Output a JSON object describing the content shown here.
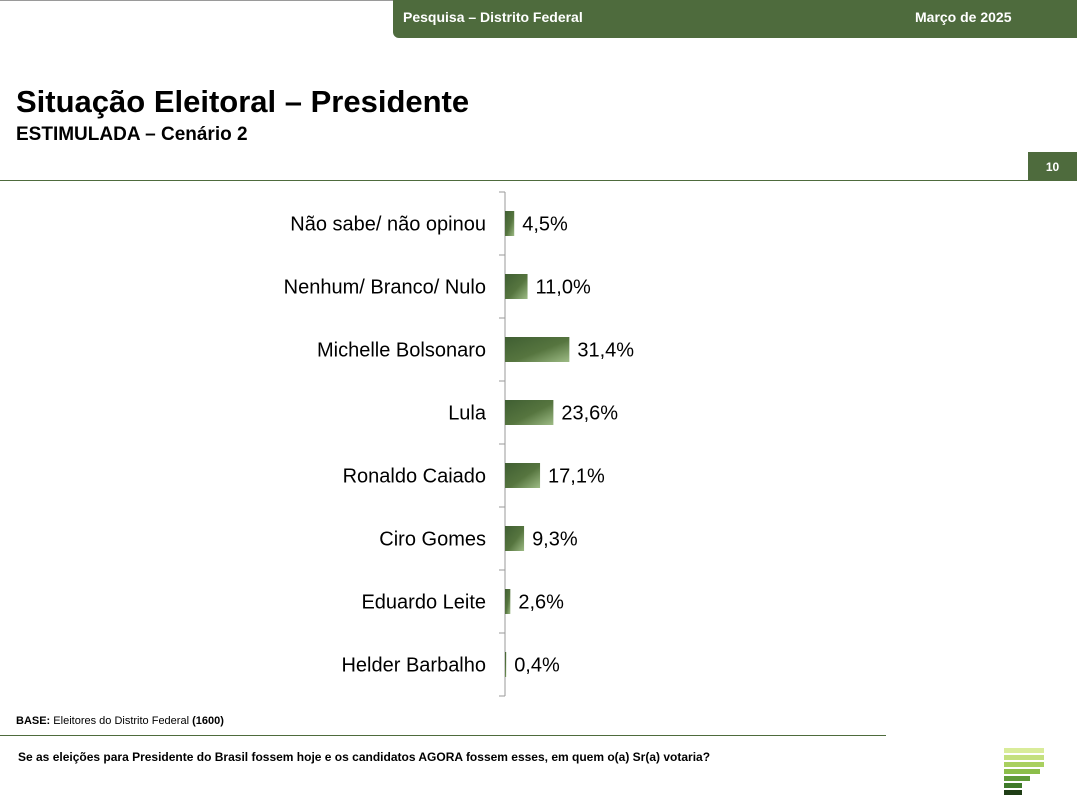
{
  "header": {
    "left": "Pesquisa – Distrito Federal",
    "right": "Março de 2025"
  },
  "title": "Situação Eleitoral – Presidente",
  "subtitle": "ESTIMULADA – Cenário 2",
  "page_number": "10",
  "footer": {
    "base_label": "BASE:",
    "base_text": "Eleitores do Distrito Federal",
    "base_count": "(1600)",
    "question": "Se as eleições para Presidente do Brasil fossem hoje e os candidatos AGORA fossem esses, em quem o(a) Sr(a) votaria?"
  },
  "colors": {
    "brand_green": "#4e6b3d",
    "bar_dark": "#3f5e32",
    "bar_light": "#9dbb85"
  },
  "chart_data": {
    "type": "bar",
    "orientation": "horizontal",
    "categories": [
      "Não sabe/ não opinou",
      "Nenhum/ Branco/ Nulo",
      "Michelle Bolsonaro",
      "Lula",
      "Ronaldo Caiado",
      "Ciro Gomes",
      "Eduardo Leite",
      "Helder Barbalho"
    ],
    "values": [
      4.5,
      11.0,
      31.4,
      23.6,
      17.1,
      9.3,
      2.6,
      0.4
    ],
    "value_labels": [
      "4,5%",
      "11,0%",
      "31,4%",
      "23,6%",
      "17,1%",
      "9,3%",
      "2,6%",
      "0,4%"
    ],
    "xlim": [
      0,
      100
    ],
    "grid": false,
    "legend": "none"
  }
}
